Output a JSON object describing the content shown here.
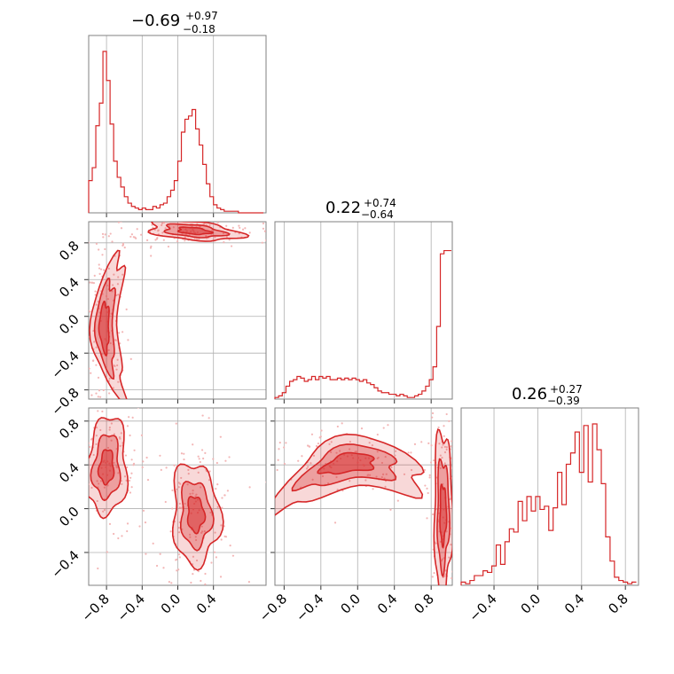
{
  "chart_data": {
    "type": "corner",
    "color": "#d62728",
    "parameters": [
      {
        "title_value": "−0.69",
        "title_plus": "+0.97",
        "title_minus": "−0.18"
      },
      {
        "title_value": "0.22",
        "title_plus": "+0.74",
        "title_minus": "−0.64"
      },
      {
        "title_value": "0.26",
        "title_plus": "+0.27",
        "title_minus": "−0.39"
      }
    ],
    "axes": {
      "p1": {
        "range": [
          -1.0,
          0.99
        ],
        "ticks": [
          -0.8,
          -0.4,
          0.0,
          0.4
        ],
        "tick_labels": [
          "−0.8",
          "−0.4",
          "0.0",
          "0.4"
        ]
      },
      "p2": {
        "range": [
          -0.9,
          1.03
        ],
        "ticks": [
          -0.8,
          -0.4,
          0.0,
          0.4,
          0.8
        ],
        "tick_labels": [
          "−0.8",
          "−0.4",
          "0.0",
          "0.4",
          "0.8"
        ]
      },
      "p3": {
        "range": [
          -0.7,
          0.92
        ],
        "ticks": [
          -0.4,
          0.0,
          0.4,
          0.8
        ],
        "tick_labels": [
          "−0.4",
          "0.0",
          "0.4",
          "0.8"
        ]
      }
    },
    "histograms": {
      "p1": {
        "bins": [
          -1.0,
          -0.96,
          -0.92,
          -0.88,
          -0.84,
          -0.8,
          -0.76,
          -0.72,
          -0.68,
          -0.64,
          -0.6,
          -0.56,
          -0.52,
          -0.48,
          -0.44,
          -0.4,
          -0.36,
          -0.32,
          -0.28,
          -0.24,
          -0.2,
          -0.16,
          -0.12,
          -0.08,
          -0.04,
          0.0,
          0.04,
          0.08,
          0.12,
          0.16,
          0.2,
          0.24,
          0.28,
          0.32,
          0.36,
          0.4,
          0.44,
          0.48,
          0.52,
          0.56,
          0.6,
          0.64,
          0.68,
          0.72,
          0.76,
          0.8,
          0.84,
          0.88,
          0.92,
          0.96
        ],
        "values": [
          0.2,
          0.28,
          0.54,
          0.68,
          1.0,
          0.82,
          0.55,
          0.32,
          0.22,
          0.16,
          0.1,
          0.06,
          0.04,
          0.03,
          0.02,
          0.03,
          0.02,
          0.02,
          0.04,
          0.03,
          0.05,
          0.06,
          0.1,
          0.14,
          0.2,
          0.32,
          0.5,
          0.58,
          0.6,
          0.64,
          0.52,
          0.42,
          0.3,
          0.18,
          0.1,
          0.05,
          0.03,
          0.02,
          0.01,
          0.01,
          0.01,
          0.01,
          0.0,
          0.0,
          0.0,
          0.0,
          0.0,
          0.0,
          0.0
        ]
      },
      "p2": {
        "bins": [
          -0.9,
          -0.86,
          -0.82,
          -0.78,
          -0.74,
          -0.7,
          -0.66,
          -0.62,
          -0.58,
          -0.54,
          -0.5,
          -0.46,
          -0.42,
          -0.38,
          -0.34,
          -0.3,
          -0.26,
          -0.22,
          -0.18,
          -0.14,
          -0.1,
          -0.06,
          -0.02,
          0.02,
          0.06,
          0.1,
          0.14,
          0.18,
          0.22,
          0.26,
          0.3,
          0.34,
          0.38,
          0.42,
          0.46,
          0.5,
          0.54,
          0.58,
          0.62,
          0.66,
          0.7,
          0.74,
          0.78,
          0.82,
          0.86,
          0.9,
          0.94,
          0.98
        ],
        "values": [
          0.01,
          0.02,
          0.04,
          0.08,
          0.11,
          0.12,
          0.14,
          0.13,
          0.11,
          0.12,
          0.14,
          0.12,
          0.14,
          0.13,
          0.14,
          0.12,
          0.12,
          0.13,
          0.12,
          0.13,
          0.12,
          0.13,
          0.12,
          0.11,
          0.12,
          0.1,
          0.09,
          0.07,
          0.05,
          0.04,
          0.04,
          0.03,
          0.03,
          0.02,
          0.03,
          0.02,
          0.01,
          0.01,
          0.02,
          0.03,
          0.05,
          0.08,
          0.12,
          0.2,
          0.45,
          0.9,
          0.92,
          0.92
        ]
      },
      "p3": {
        "bins": [
          -0.7,
          -0.66,
          -0.62,
          -0.58,
          -0.54,
          -0.5,
          -0.46,
          -0.42,
          -0.38,
          -0.34,
          -0.3,
          -0.26,
          -0.22,
          -0.18,
          -0.14,
          -0.1,
          -0.06,
          -0.02,
          0.02,
          0.06,
          0.1,
          0.14,
          0.18,
          0.22,
          0.26,
          0.3,
          0.34,
          0.38,
          0.42,
          0.46,
          0.5,
          0.54,
          0.58,
          0.62,
          0.66,
          0.7,
          0.74,
          0.78,
          0.82,
          0.86
        ],
        "values": [
          0.02,
          0.01,
          0.03,
          0.06,
          0.06,
          0.09,
          0.08,
          0.12,
          0.25,
          0.13,
          0.27,
          0.35,
          0.33,
          0.52,
          0.4,
          0.55,
          0.46,
          0.55,
          0.47,
          0.49,
          0.34,
          0.48,
          0.7,
          0.5,
          0.75,
          0.82,
          0.95,
          0.7,
          0.99,
          0.64,
          1.0,
          0.84,
          0.63,
          0.3,
          0.15,
          0.05,
          0.03,
          0.02,
          0.01,
          0.02
        ]
      }
    },
    "contours_2d": [
      {
        "x_param": "p1",
        "y_param": "p2",
        "clusters": [
          {
            "cx": -0.83,
            "cy": -0.12,
            "sx": 0.08,
            "sy": 0.38,
            "tilt": 18,
            "curve": "arc-left"
          },
          {
            "cx": 0.18,
            "cy": 0.93,
            "sx": 0.26,
            "sy": 0.05,
            "tilt": -8,
            "curve": "none"
          }
        ]
      },
      {
        "x_param": "p1",
        "y_param": "p3",
        "clusters": [
          {
            "cx": -0.8,
            "cy": 0.38,
            "sx": 0.14,
            "sy": 0.22,
            "tilt": 35,
            "curve": "none"
          },
          {
            "cx": 0.2,
            "cy": -0.05,
            "sx": 0.14,
            "sy": 0.23,
            "tilt": -20,
            "curve": "none"
          }
        ]
      },
      {
        "x_param": "p2",
        "y_param": "p3",
        "clusters": [
          {
            "cx": -0.1,
            "cy": 0.42,
            "sx": 0.42,
            "sy": 0.12,
            "tilt": 12,
            "curve": "arc-top"
          },
          {
            "cx": 0.93,
            "cy": -0.05,
            "sx": 0.05,
            "sy": 0.38,
            "tilt": -6,
            "curve": "none"
          }
        ]
      }
    ],
    "grid": true
  }
}
